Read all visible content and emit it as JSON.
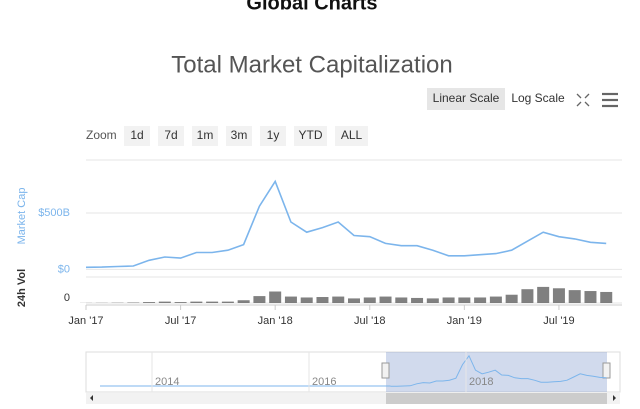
{
  "page_title": "Global Charts",
  "controls": {
    "scales": [
      "Linear Scale",
      "Log Scale"
    ],
    "zoom_label": "Zoom",
    "zoom": [
      "1d",
      "7d",
      "1m",
      "3m",
      "1y",
      "YTD",
      "ALL"
    ]
  },
  "chart_data": {
    "type": "line",
    "title": "Total Market Capitalization",
    "y_label": "Market Cap",
    "y2_label": "24h Vol",
    "x": [
      "2017-01",
      "2017-02",
      "2017-03",
      "2017-04",
      "2017-05",
      "2017-06",
      "2017-07",
      "2017-08",
      "2017-09",
      "2017-10",
      "2017-11",
      "2017-12",
      "2018-01",
      "2018-02",
      "2018-03",
      "2018-04",
      "2018-05",
      "2018-06",
      "2018-07",
      "2018-08",
      "2018-09",
      "2018-10",
      "2018-11",
      "2018-12",
      "2019-01",
      "2019-02",
      "2019-03",
      "2019-04",
      "2019-05",
      "2019-06",
      "2019-07",
      "2019-08",
      "2019-09",
      "2019-10"
    ],
    "series": [
      {
        "name": "Market Cap",
        "color": "#7cb5ec",
        "values": [
          18,
          20,
          25,
          30,
          80,
          110,
          100,
          150,
          150,
          170,
          220,
          560,
          780,
          420,
          330,
          370,
          420,
          300,
          290,
          230,
          210,
          210,
          170,
          120,
          120,
          130,
          140,
          170,
          250,
          330,
          290,
          270,
          240,
          230
        ]
      },
      {
        "name": "24h Vol",
        "color": "#555555",
        "axis": "y2",
        "values": [
          0.3,
          0.4,
          0.6,
          1,
          2,
          3,
          2,
          3,
          3,
          3,
          6,
          15,
          25,
          14,
          12,
          13,
          14,
          10,
          12,
          14,
          12,
          11,
          10,
          12,
          12,
          12,
          14,
          18,
          30,
          35,
          32,
          28,
          26,
          24
        ]
      }
    ],
    "xlim": [
      "2017-01",
      "2019-11"
    ],
    "xticks": [
      {
        "value": "2017-01",
        "label": "Jan '17"
      },
      {
        "value": "2017-07",
        "label": "Jul '17"
      },
      {
        "value": "2018-01",
        "label": "Jan '18"
      },
      {
        "value": "2018-07",
        "label": "Jul '18"
      },
      {
        "value": "2019-01",
        "label": "Jan '19"
      },
      {
        "value": "2019-07",
        "label": "Jul '19"
      }
    ],
    "ylim": [
      -50,
      970
    ],
    "yticks": [
      {
        "value": 0,
        "label": "$0"
      },
      {
        "value": 500,
        "label": "$500B"
      }
    ],
    "y2lim": [
      0,
      50
    ],
    "y2ticks": [
      0
    ],
    "grid": true,
    "navigator_ticks": [
      2014,
      2016,
      2018
    ]
  }
}
